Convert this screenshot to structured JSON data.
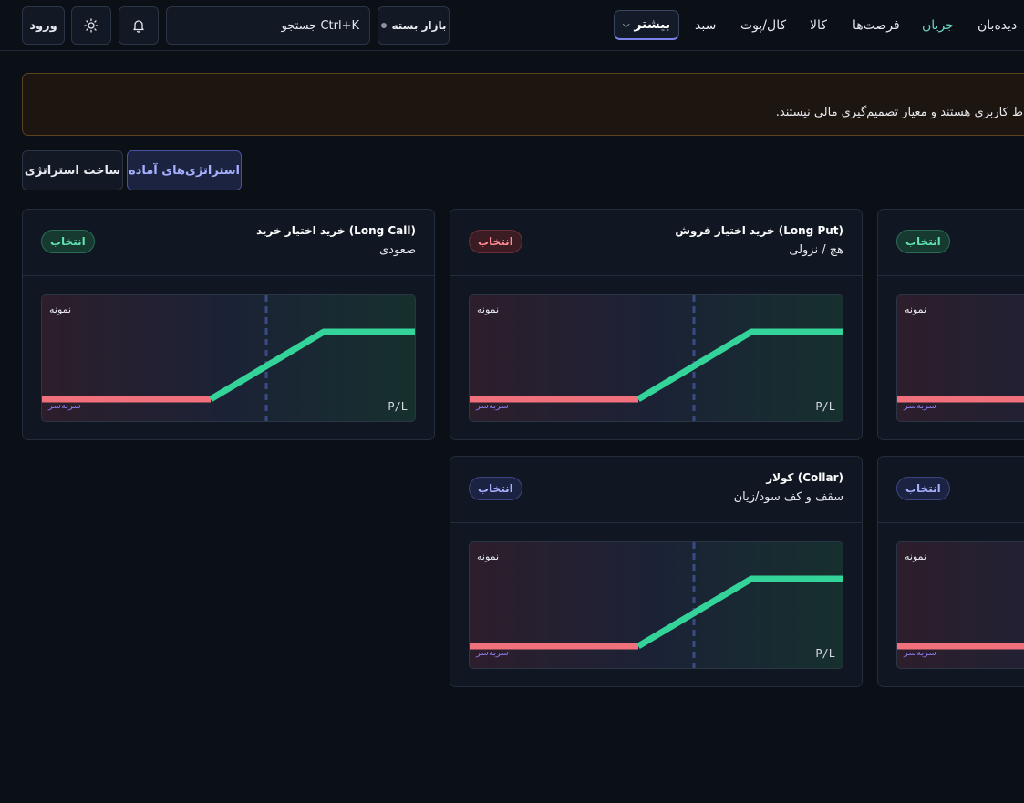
{
  "header": {
    "login": "ورود",
    "theme_icon": "sun-icon",
    "bell_icon": "bell-icon",
    "search_label": "جستجو Ctrl+K",
    "market_status": "بازار بسته",
    "more_label": "بیشتر",
    "nav": [
      "دیده‌بان",
      "جریان",
      "فرصت‌ها",
      "کالا",
      "کال/پوت",
      "سبد"
    ],
    "nav_active": "جریان"
  },
  "banner": {
    "text": "ط کاربری هستند و معیار تصمیم‌گیری مالی نیستند."
  },
  "mode": {
    "ready": "استراتژی‌های آماده",
    "build": "ساخت استراتژی"
  },
  "chart_labels": {
    "sample": "نمونه",
    "pl": "P/L",
    "breakeven": "سربه‌سر"
  },
  "cards": [
    {
      "title": "خرید اختیار خرید (Long Call)",
      "subtitle": "صعودی",
      "badge": "انتخاب",
      "badge_color": "#5ee0b0"
    },
    {
      "title": "خرید اختیار فروش (Long Put)",
      "subtitle": "هج / نزولی",
      "badge": "انتخاب",
      "badge_color": "#ff8a95"
    },
    {
      "title": "",
      "subtitle": "",
      "badge": "انتخاب",
      "badge_color": "#5ee0b0"
    },
    {
      "title": "کولار (Collar)",
      "subtitle": "سقف و کف سود/زیان",
      "badge": "انتخاب",
      "badge_color": "#a7b0ff"
    },
    {
      "title": "",
      "subtitle": "",
      "badge": "انتخاب",
      "badge_color": "#a7b0ff"
    }
  ],
  "colors": {
    "loss": "#f0707c",
    "profit": "#34d399",
    "strike": "#3a4a85"
  }
}
